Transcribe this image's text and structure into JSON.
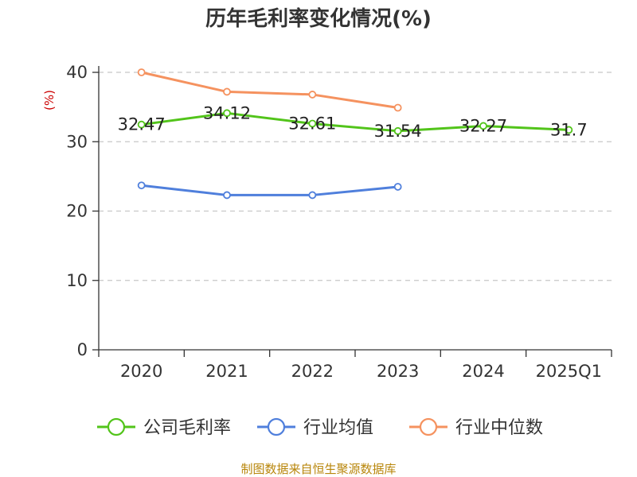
{
  "chart_data": {
    "type": "line",
    "title": "历年毛利率变化情况(%)",
    "ylabel": "(%)",
    "xlabel": "",
    "categories": [
      "2020",
      "2021",
      "2022",
      "2023",
      "2024",
      "2025Q1"
    ],
    "ylim": [
      0,
      40
    ],
    "yticks": [
      0,
      10,
      20,
      30,
      40
    ],
    "grid": true,
    "legend_position": "bottom",
    "series": [
      {
        "name": "公司毛利率",
        "color": "#52c41a",
        "values": [
          32.47,
          34.12,
          32.61,
          31.54,
          32.27,
          31.7
        ],
        "labels": [
          "32.47",
          "34.12",
          "32.61",
          "31.54",
          "32.27",
          "31.7"
        ]
      },
      {
        "name": "行业均值",
        "color": "#4f7fdc",
        "values": [
          23.7,
          22.3,
          22.3,
          23.5,
          null,
          null
        ]
      },
      {
        "name": "行业中位数",
        "color": "#f5925f",
        "values": [
          40.0,
          37.2,
          36.8,
          34.9,
          null,
          null
        ]
      }
    ],
    "source": "制图数据来自恒生聚源数据库"
  }
}
